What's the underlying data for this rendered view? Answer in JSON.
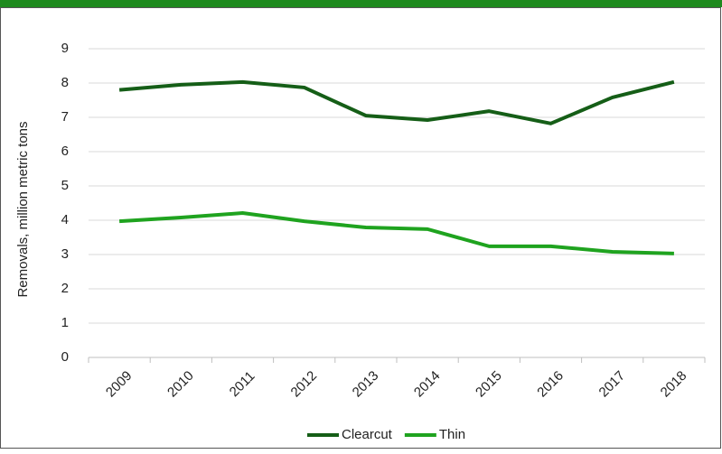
{
  "chart_data": {
    "type": "line",
    "y_label": "Removals, million metric tons",
    "categories": [
      "2009",
      "2010",
      "2011",
      "2012",
      "2013",
      "2014",
      "2015",
      "2016",
      "2017",
      "2018"
    ],
    "series": [
      {
        "name": "Clearcut",
        "color": "#155e17",
        "values": [
          7.8,
          7.95,
          8.03,
          7.87,
          7.05,
          6.92,
          7.18,
          6.82,
          7.58,
          8.03
        ]
      },
      {
        "name": "Thin",
        "color": "#1fa31f",
        "values": [
          3.97,
          4.08,
          4.21,
          3.97,
          3.79,
          3.74,
          3.24,
          3.24,
          3.08,
          3.03
        ]
      }
    ],
    "ylim": [
      0,
      9
    ],
    "yticks": [
      0,
      1,
      2,
      3,
      4,
      5,
      6,
      7,
      8,
      9
    ],
    "grid": true,
    "legend": "bottom"
  }
}
